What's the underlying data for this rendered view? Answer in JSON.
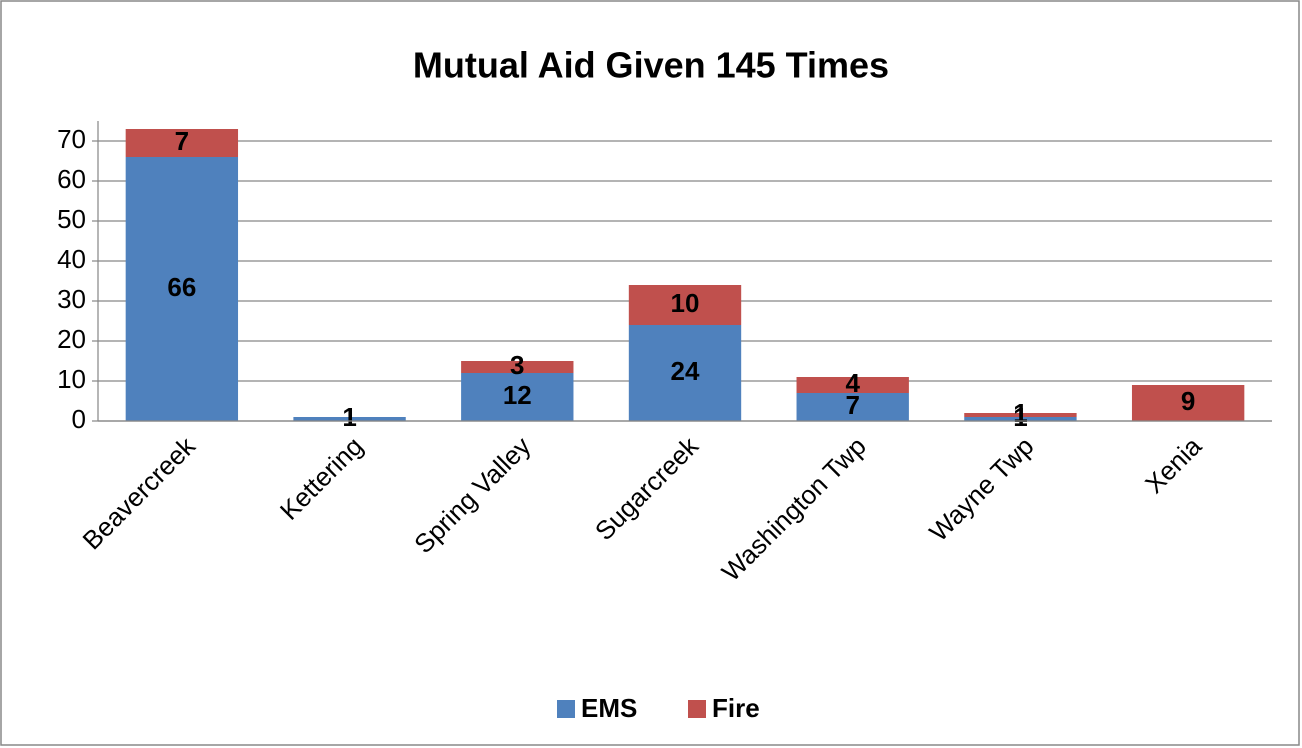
{
  "chart_data": {
    "type": "stacked_bar",
    "title": "Mutual Aid Given 145 Times",
    "categories": [
      "Beavercreek",
      "Kettering",
      "Spring Valley",
      "Sugarcreek",
      "Washington Twp",
      "Wayne Twp",
      "Xenia"
    ],
    "series": [
      {
        "name": "EMS",
        "color": "#4f81bd",
        "values": [
          66,
          1,
          12,
          24,
          7,
          1,
          null
        ]
      },
      {
        "name": "Fire",
        "color": "#c0504d",
        "values": [
          7,
          null,
          3,
          10,
          4,
          1,
          9
        ]
      }
    ],
    "ylim": [
      0,
      75
    ],
    "yticks": [
      0,
      10,
      20,
      30,
      40,
      50,
      60,
      70
    ],
    "grid": true,
    "legend": "bottom"
  }
}
